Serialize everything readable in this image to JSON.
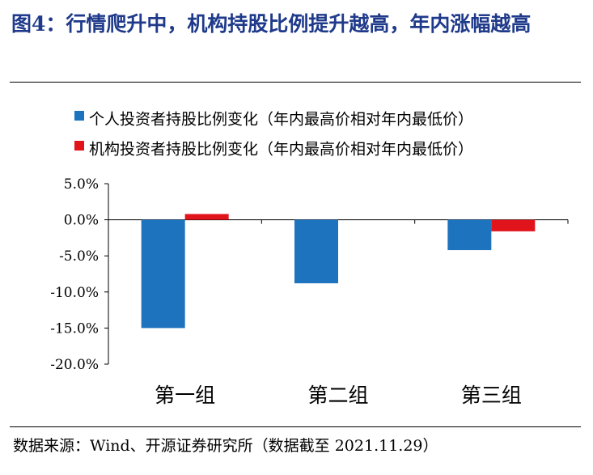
{
  "figure_title": "图4：行情爬升中，机构持股比例提升越高，年内涨幅越高",
  "source": "数据来源：Wind、开源证券研究所（数据截至 2021.11.29）",
  "colors": {
    "individual": "#1e73be",
    "institution": "#e1141c",
    "title": "#1f3a8a"
  },
  "chart_data": {
    "type": "bar",
    "categories": [
      "第一组",
      "第二组",
      "第三组"
    ],
    "series": [
      {
        "name": "个人投资者持股比例变化（年内最高价相对年内最低价）",
        "values": [
          -15.0,
          -8.8,
          -4.2
        ]
      },
      {
        "name": "机构投资者持股比例变化（年内最高价相对年内最低价）",
        "values": [
          0.8,
          0.0,
          -1.6
        ]
      }
    ],
    "ylim": [
      -20,
      5
    ],
    "yticks": [
      5,
      0,
      -5,
      -10,
      -15,
      -20
    ],
    "ytick_labels": [
      "5.0%",
      "0.0%",
      "-5.0%",
      "-10.0%",
      "-15.0%",
      "-20.0%"
    ],
    "legend_position": "top-left",
    "grid": false
  }
}
